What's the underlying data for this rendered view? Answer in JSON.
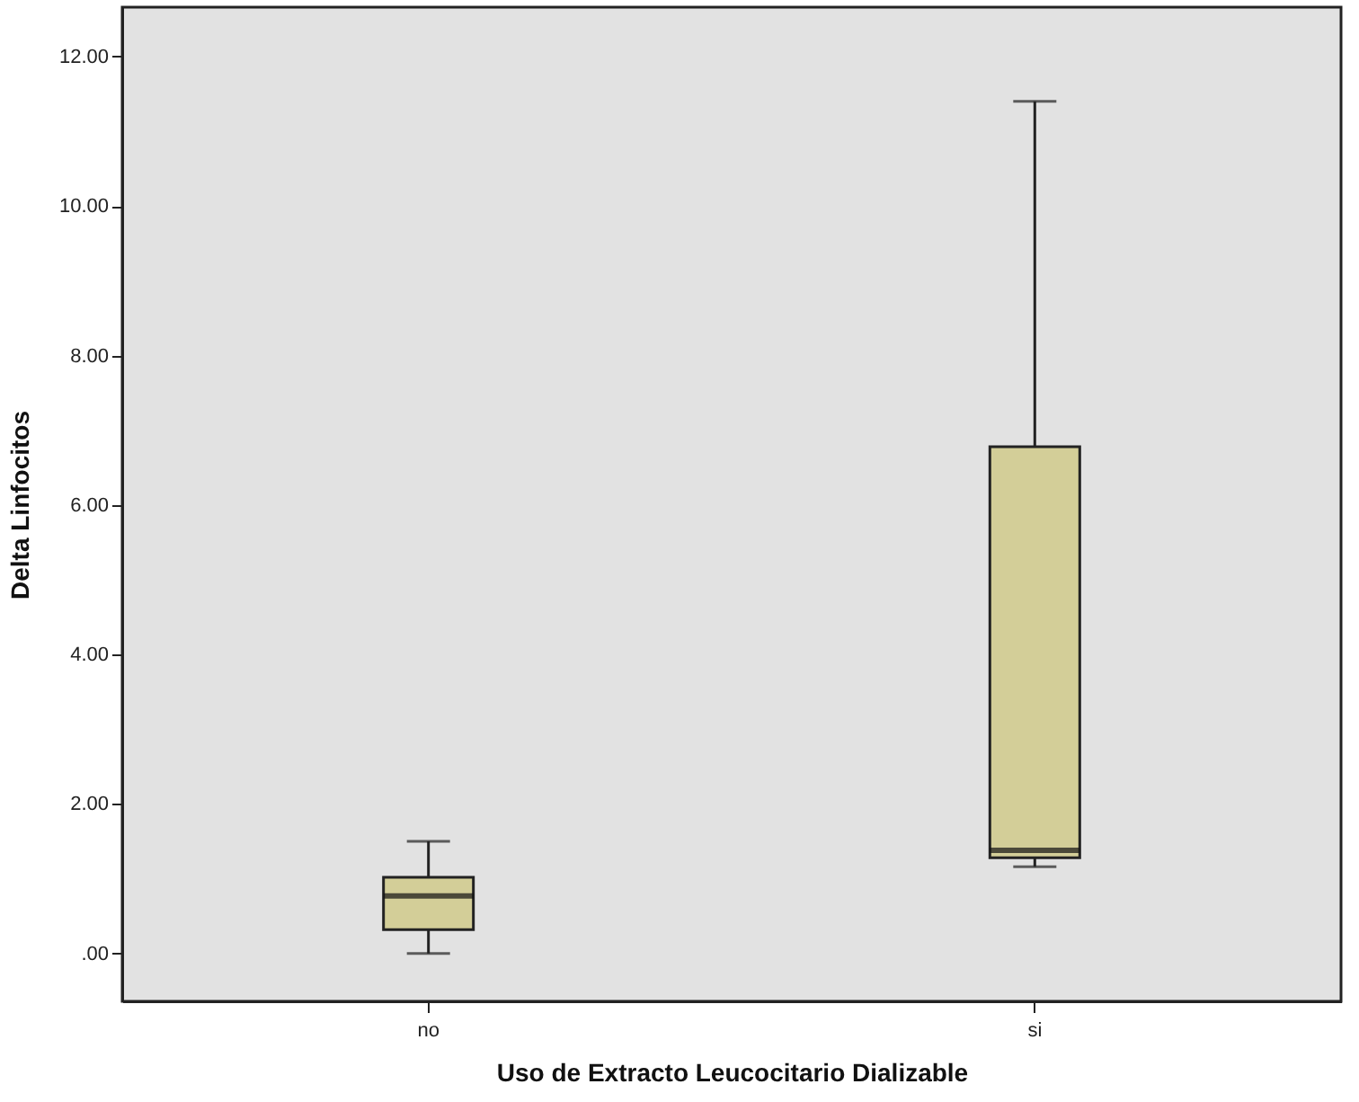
{
  "chart_data": {
    "type": "box",
    "xlabel": "Uso de Extracto Leucocitario Dializable",
    "ylabel": "Delta Linfocitos",
    "categories": [
      "no",
      "si"
    ],
    "boxes": [
      {
        "low": 0.0,
        "q1": 0.32,
        "median": 0.77,
        "q3": 1.02,
        "high": 1.5
      },
      {
        "low": 1.16,
        "q1": 1.28,
        "median": 1.38,
        "q3": 6.78,
        "high": 11.4
      }
    ],
    "color": "#d3ce98",
    "ylim": [
      -0.64,
      12.66
    ],
    "yticks": [
      {
        "value": 0,
        "label": ".00"
      },
      {
        "value": 2,
        "label": "2.00"
      },
      {
        "value": 4,
        "label": "4.00"
      },
      {
        "value": 6,
        "label": "6.00"
      },
      {
        "value": 8,
        "label": "8.00"
      },
      {
        "value": 10,
        "label": "10.00"
      },
      {
        "value": 12,
        "label": "12.00"
      }
    ],
    "grid": false
  }
}
